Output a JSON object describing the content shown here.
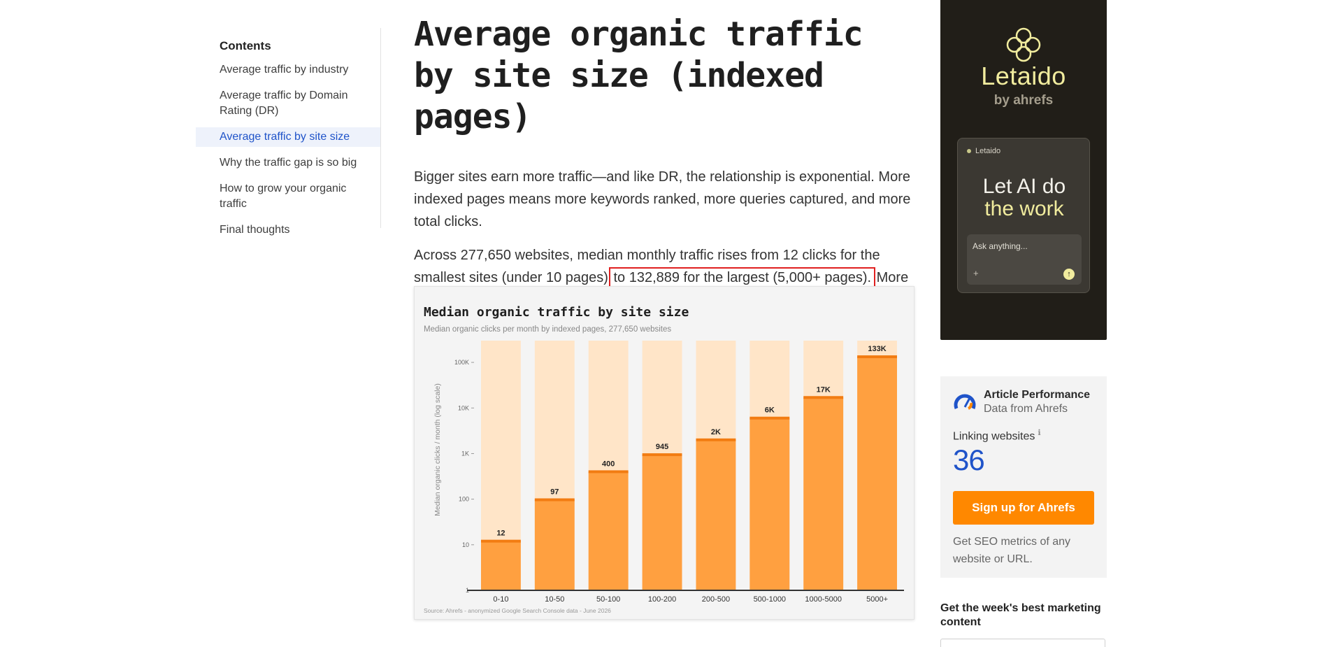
{
  "toc": {
    "title": "Contents",
    "items": [
      {
        "label": "Average traffic by industry",
        "active": false
      },
      {
        "label": "Average traffic by Domain Rating (DR)",
        "active": false
      },
      {
        "label": "Average traffic by site size",
        "active": true
      },
      {
        "label": "Why the traffic gap is so big",
        "active": false
      },
      {
        "label": "How to grow your organic traffic",
        "active": false
      },
      {
        "label": "Final thoughts",
        "active": false
      }
    ]
  },
  "article": {
    "title": "Average organic traffic by site size (indexed pages)",
    "p1": "Bigger sites earn more traffic—and like DR, the relationship is exponential. More indexed pages means more keywords ranked, more queries captured, and more total clicks.",
    "p2_before": "Across 277,650 websites, median monthly traffic rises from 12 clicks for the smallest sites (under 10 pages) ",
    "p2_highlight": "to 132,889 for the largest (5,000+ pages).",
    "p2_after": " More pages is more surface area to rank, and at scale that surface area compounds."
  },
  "chart_data": {
    "type": "bar",
    "title": "Median organic traffic by site size",
    "subtitle": "Median organic clicks per month by indexed pages, 277,650 websites",
    "ylabel": "Median organic clicks / month (log scale)",
    "xlabel": "",
    "y_scale": "log",
    "ylim": [
      1,
      300000
    ],
    "y_ticks": [
      1,
      10,
      100,
      1000,
      10000,
      100000
    ],
    "y_tick_labels": [
      "1",
      "10",
      "100",
      "1K",
      "10K",
      "100K"
    ],
    "categories": [
      "0-10",
      "10-50",
      "50-100",
      "100-200",
      "200-500",
      "500-1000",
      "1000-5000",
      "5000+"
    ],
    "values": [
      12,
      97,
      400,
      945,
      2000,
      6000,
      17000,
      132889
    ],
    "data_labels": [
      "12",
      "97",
      "400",
      "945",
      "2K",
      "6K",
      "17K",
      "133K"
    ],
    "source": "Source: Ahrefs - anonymized Google Search Console data - June 2026",
    "colors": {
      "bar": "#ffa040",
      "bar_top": "#f27c12",
      "bar_bg": "#ffe5c8",
      "axis": "#333333"
    }
  },
  "ad": {
    "brand": "Letaido",
    "by": "by ahrefs",
    "card_label": "Letaido",
    "headline1": "Let AI do",
    "headline2": "the work",
    "input_placeholder": "Ask anything...",
    "plus": "+",
    "send": "↑"
  },
  "performance": {
    "title": "Article Performance",
    "subtitle": "Data from Ahrefs",
    "linking_label": "Linking websites",
    "info_icon": "ℹ",
    "linking_value": "36",
    "cta": "Sign up for Ahrefs",
    "note": "Get SEO metrics of any website or URL."
  },
  "newsletter": {
    "title": "Get the week's best marketing content"
  }
}
